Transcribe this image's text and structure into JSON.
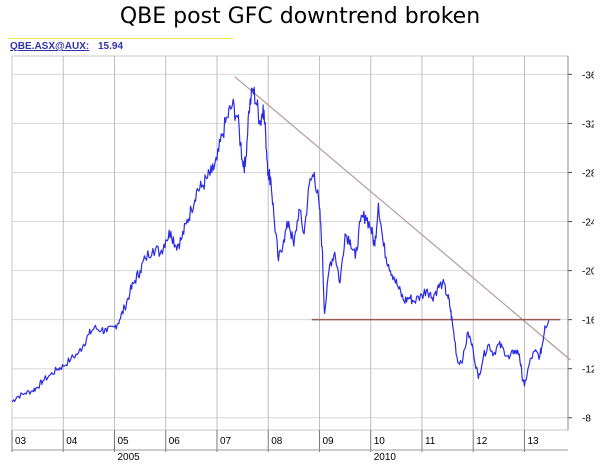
{
  "title": "QBE post GFC downtrend broken",
  "header": {
    "ticker": "QBE.ASX@AUX:",
    "last_value": "15.94"
  },
  "colors": {
    "price_line": "#2b2be6",
    "trend_line": "#b59a9a",
    "support_line": "#9a5a50",
    "grid": "#d8d8d8",
    "year_grid": "#bfbfbf",
    "axis_text": "#000000"
  },
  "chart_data": {
    "type": "line",
    "title": "QBE post GFC downtrend broken",
    "xlabel": "",
    "ylabel": "",
    "ylim": [
      7,
      37.5
    ],
    "xlim": [
      2003.0,
      2013.85
    ],
    "y_ticks": [
      8,
      12,
      16,
      20,
      24,
      28,
      32,
      36
    ],
    "x_ticks": [
      {
        "x": 2003.0,
        "label": "03"
      },
      {
        "x": 2004.0,
        "label": "04"
      },
      {
        "x": 2005.0,
        "label": "05"
      },
      {
        "x": 2006.0,
        "label": "06"
      },
      {
        "x": 2007.0,
        "label": "07"
      },
      {
        "x": 2008.0,
        "label": "08"
      },
      {
        "x": 2009.0,
        "label": "09"
      },
      {
        "x": 2010.0,
        "label": "10"
      },
      {
        "x": 2011.0,
        "label": "11"
      },
      {
        "x": 2012.0,
        "label": "12"
      },
      {
        "x": 2013.0,
        "label": "13"
      }
    ],
    "x_major_labels": [
      {
        "x": 2005.0,
        "label": "2005"
      },
      {
        "x": 2010.0,
        "label": "2010"
      }
    ],
    "grid": true,
    "legend": "none",
    "series": [
      {
        "x": [
          2003.0,
          2003.1,
          2003.25,
          2003.4,
          2003.5,
          2003.6,
          2003.75,
          2003.9,
          2004.0,
          2004.15,
          2004.3,
          2004.4,
          2004.5,
          2004.6,
          2004.75,
          2004.85,
          2005.0,
          2005.1,
          2005.2,
          2005.3,
          2005.4,
          2005.5,
          2005.6,
          2005.75,
          2005.9,
          2006.0,
          2006.1,
          2006.2,
          2006.3,
          2006.4,
          2006.5,
          2006.6,
          2006.7,
          2006.8,
          2006.9,
          2007.0,
          2007.1,
          2007.2,
          2007.3,
          2007.4,
          2007.5,
          2007.55,
          2007.62,
          2007.7,
          2007.78,
          2007.85,
          2007.9,
          2007.95,
          2008.0,
          2008.05,
          2008.12,
          2008.2,
          2008.3,
          2008.4,
          2008.5,
          2008.6,
          2008.7,
          2008.8,
          2008.9,
          2009.0,
          2009.05,
          2009.1,
          2009.2,
          2009.3,
          2009.4,
          2009.5,
          2009.6,
          2009.7,
          2009.8,
          2009.9,
          2010.0,
          2010.08,
          2010.15,
          2010.25,
          2010.35,
          2010.45,
          2010.55,
          2010.65,
          2010.75,
          2010.85,
          2011.0,
          2011.1,
          2011.2,
          2011.3,
          2011.4,
          2011.5,
          2011.55,
          2011.6,
          2011.7,
          2011.8,
          2011.9,
          2012.0,
          2012.1,
          2012.2,
          2012.3,
          2012.4,
          2012.5,
          2012.6,
          2012.7,
          2012.8,
          2012.9,
          2012.95,
          2013.0,
          2013.1,
          2013.2,
          2013.3,
          2013.35,
          2013.4,
          2013.48
        ],
        "values": [
          9.3,
          9.7,
          10.0,
          10.2,
          10.5,
          11.0,
          11.5,
          12.0,
          12.2,
          12.8,
          13.3,
          14.0,
          14.8,
          15.3,
          15.2,
          15.0,
          15.4,
          16.0,
          17.0,
          18.2,
          19.2,
          20.0,
          21.0,
          21.8,
          21.5,
          22.5,
          23.2,
          22.0,
          22.5,
          23.8,
          25.0,
          26.5,
          26.8,
          27.5,
          28.0,
          29.0,
          31.0,
          32.5,
          33.5,
          32.5,
          29.0,
          28.5,
          33.0,
          34.8,
          33.5,
          32.0,
          33.5,
          31.0,
          28.0,
          27.5,
          24.0,
          20.8,
          22.5,
          24.0,
          22.0,
          25.0,
          23.0,
          27.0,
          28.0,
          25.0,
          22.0,
          16.5,
          20.5,
          21.5,
          19.0,
          23.0,
          22.5,
          21.0,
          24.0,
          24.5,
          23.5,
          22.0,
          25.5,
          22.0,
          20.5,
          19.5,
          18.5,
          17.5,
          17.8,
          17.5,
          18.0,
          18.5,
          17.8,
          18.5,
          19.0,
          18.0,
          17.0,
          15.5,
          12.5,
          12.8,
          15.0,
          13.5,
          11.2,
          13.0,
          14.0,
          13.2,
          14.0,
          13.5,
          12.8,
          13.5,
          13.2,
          11.5,
          10.6,
          12.5,
          13.4,
          13.0,
          14.0,
          15.5,
          15.94
        ]
      }
    ],
    "annotations": [
      {
        "type": "trendline",
        "x": [
          2007.35,
          2013.9
        ],
        "y": [
          35.8,
          12.7
        ]
      },
      {
        "type": "support",
        "x": [
          2008.85,
          2013.7
        ],
        "y": [
          16.0,
          16.0
        ]
      }
    ]
  }
}
